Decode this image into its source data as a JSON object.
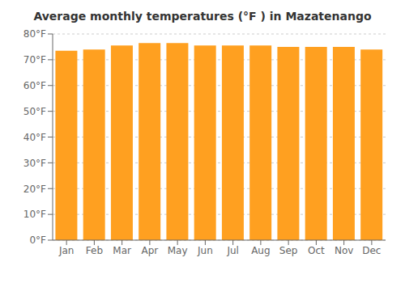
{
  "chart_data": {
    "type": "bar",
    "title": "Average monthly temperatures (°F ) in Mazatenango",
    "categories": [
      "Jan",
      "Feb",
      "Mar",
      "Apr",
      "May",
      "Jun",
      "Jul",
      "Aug",
      "Sep",
      "Oct",
      "Nov",
      "Dec"
    ],
    "values": [
      73.5,
      74.0,
      75.5,
      76.5,
      76.5,
      75.5,
      75.5,
      75.5,
      75.0,
      75.0,
      75.0,
      74.0
    ],
    "color": "#FFA020",
    "ylim": [
      0,
      80
    ],
    "yticks": [
      {
        "value": 0,
        "label": "0°F"
      },
      {
        "value": 10,
        "label": "10°F"
      },
      {
        "value": 20,
        "label": "20°F"
      },
      {
        "value": 30,
        "label": "30°F"
      },
      {
        "value": 40,
        "label": "40°F"
      },
      {
        "value": 50,
        "label": "50°F"
      },
      {
        "value": 60,
        "label": "60°F"
      },
      {
        "value": 70,
        "label": "70°F"
      },
      {
        "value": 80,
        "label": "80°F"
      }
    ],
    "grid": true
  }
}
